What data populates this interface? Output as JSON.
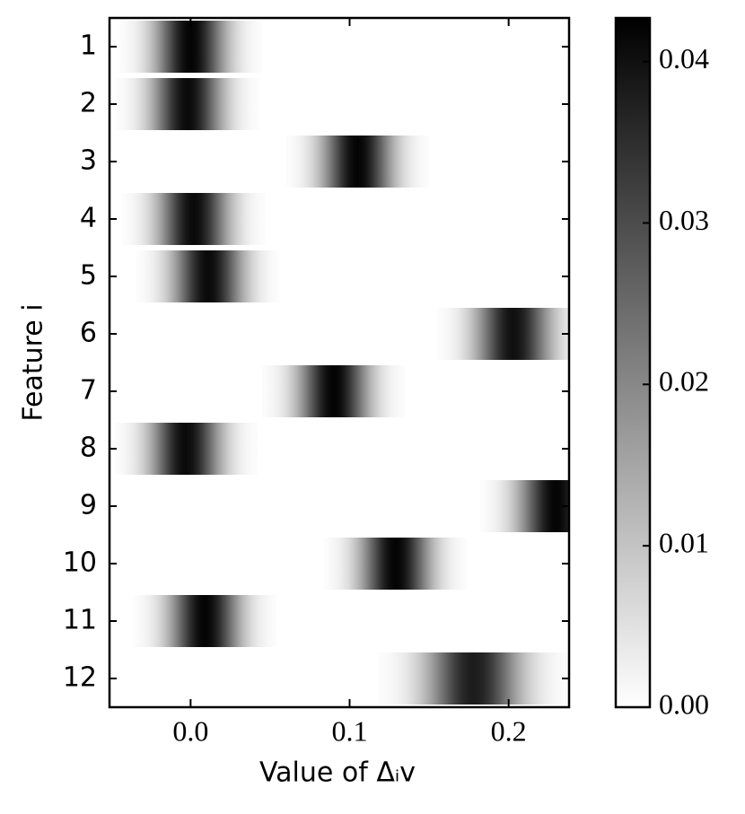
{
  "chart_data": {
    "type": "heatmap",
    "xlabel": "Value of Δᵢv",
    "ylabel": "Feature i",
    "categories": [
      "1",
      "2",
      "3",
      "4",
      "5",
      "6",
      "7",
      "8",
      "9",
      "10",
      "11",
      "12"
    ],
    "rows": [
      {
        "center": 0.0,
        "spread": 0.015,
        "peak": 0.042
      },
      {
        "center": -0.002,
        "spread": 0.015,
        "peak": 0.041
      },
      {
        "center": 0.105,
        "spread": 0.015,
        "peak": 0.042
      },
      {
        "center": 0.002,
        "spread": 0.015,
        "peak": 0.041
      },
      {
        "center": 0.011,
        "spread": 0.015,
        "peak": 0.041
      },
      {
        "center": 0.203,
        "spread": 0.016,
        "peak": 0.04
      },
      {
        "center": 0.09,
        "spread": 0.015,
        "peak": 0.042
      },
      {
        "center": -0.003,
        "spread": 0.015,
        "peak": 0.041
      },
      {
        "center": 0.23,
        "spread": 0.016,
        "peak": 0.042
      },
      {
        "center": 0.129,
        "spread": 0.015,
        "peak": 0.042
      },
      {
        "center": 0.009,
        "spread": 0.015,
        "peak": 0.042
      },
      {
        "center": 0.178,
        "spread": 0.02,
        "peak": 0.038
      }
    ],
    "xlim": [
      -0.051,
      0.238
    ],
    "xticks": [
      {
        "value": 0,
        "label": "0.0"
      },
      {
        "value": 0.1,
        "label": "0.1"
      },
      {
        "value": 0.2,
        "label": "0.2"
      }
    ],
    "clim": [
      0,
      0.0427
    ],
    "cticks": [
      {
        "value": 0,
        "label": "0.00"
      },
      {
        "value": 0.01,
        "label": "0.01"
      },
      {
        "value": 0.02,
        "label": "0.02"
      },
      {
        "value": 0.03,
        "label": "0.03"
      },
      {
        "value": 0.04,
        "label": "0.04"
      }
    ],
    "colormap": "gray_r"
  }
}
